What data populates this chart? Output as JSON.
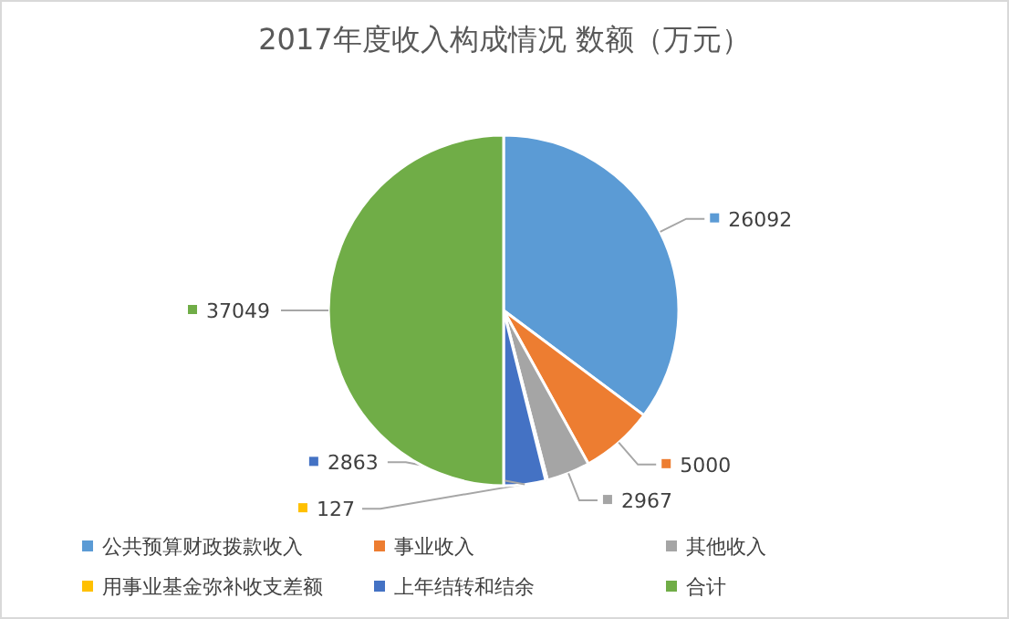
{
  "chart_data": {
    "type": "pie",
    "title": "2017年度收入构成情况 数额（万元）",
    "categories": [
      "公共预算财政拨款收入",
      "事业收入",
      "其他收入",
      "用事业基金弥补收支差额",
      "上年结转和结余",
      "合计"
    ],
    "values": [
      26092,
      5000,
      2967,
      127,
      2863,
      37049
    ],
    "colors": [
      "#5b9bd5",
      "#ed7d31",
      "#a5a5a5",
      "#ffc000",
      "#4472c4",
      "#70ad47"
    ],
    "data_labels": true,
    "legend": "bottom"
  }
}
